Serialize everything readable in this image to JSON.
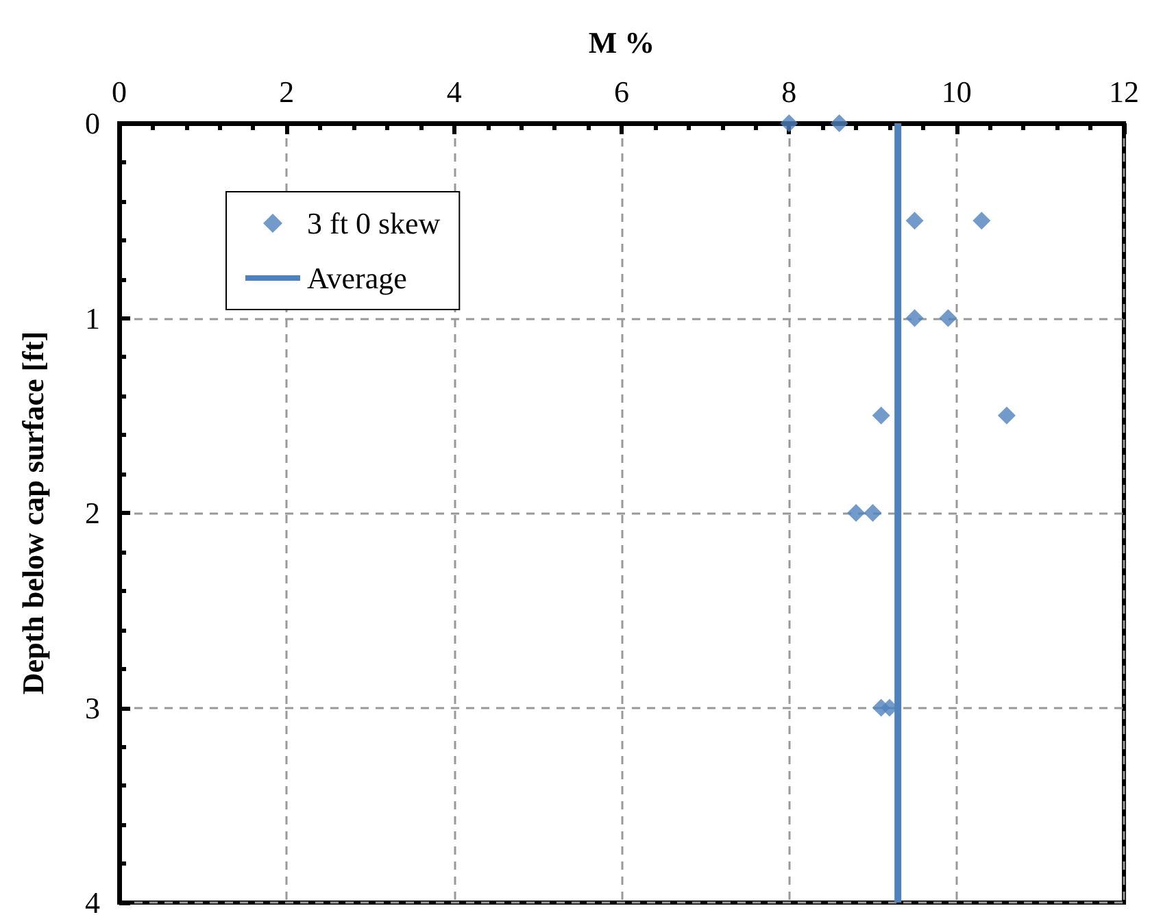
{
  "chart_data": {
    "type": "scatter",
    "xlabel": "M %",
    "ylabel": "Depth below cap surface [ft]",
    "xlim": [
      0,
      12
    ],
    "xticks": [
      0,
      2,
      4,
      6,
      8,
      10,
      12
    ],
    "ylim": [
      4,
      0
    ],
    "yticks": [
      0,
      1,
      2,
      3,
      4
    ],
    "grid": true,
    "legend": "top left",
    "marker": "diamond",
    "series": [
      {
        "name": "3 ft 0 skew",
        "color": "#4f81bd",
        "x": [
          8,
          8.6,
          9.5,
          10.3,
          9.5,
          9.9,
          9.1,
          10.6,
          8.8,
          9.0,
          9.1,
          9.2
        ],
        "values": [
          0,
          0,
          0.5,
          0.5,
          1,
          1,
          1.5,
          1.5,
          2,
          2,
          3,
          3
        ]
      },
      {
        "name": "Average",
        "type": "line",
        "color": "#4f81bd",
        "line_style": "solid",
        "marker": "none",
        "x": [
          9.3,
          9.3
        ],
        "values": [
          0,
          4
        ]
      }
    ]
  }
}
